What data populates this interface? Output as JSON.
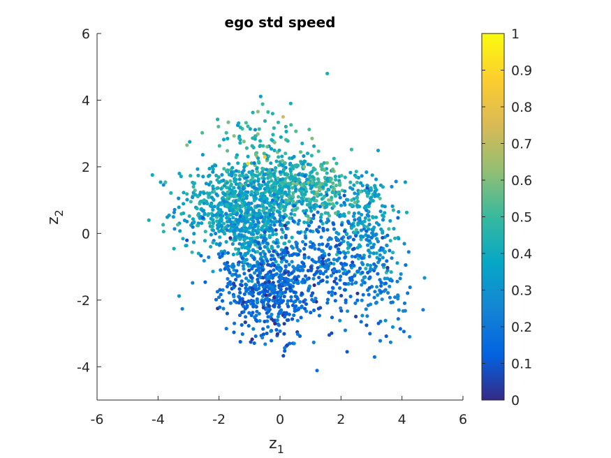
{
  "chart_data": {
    "type": "scatter",
    "title": "ego std speed",
    "xlabel": {
      "base": "z",
      "sub": "1"
    },
    "ylabel": {
      "base": "z",
      "sub": "2"
    },
    "xlim": [
      -6,
      6
    ],
    "ylim": [
      -5,
      6
    ],
    "xticks": [
      -6,
      -4,
      -2,
      0,
      2,
      4,
      6
    ],
    "yticks": [
      -4,
      -2,
      0,
      2,
      4,
      6
    ],
    "xtick_labels": [
      "-6",
      "-4",
      "-2",
      "0",
      "2",
      "4",
      "6"
    ],
    "ytick_labels": [
      "-4",
      "-2",
      "0",
      "2",
      "4",
      "6"
    ],
    "grid": false,
    "colorbar": {
      "colormap": "parula",
      "range": [
        0,
        1
      ],
      "ticks": [
        0,
        0.1,
        0.2,
        0.3,
        0.4,
        0.5,
        0.6,
        0.7,
        0.8,
        0.9,
        1
      ],
      "tick_labels": [
        "0",
        "0.1",
        "0.2",
        "0.3",
        "0.4",
        "0.5",
        "0.6",
        "0.7",
        "0.8",
        "0.9",
        "1"
      ],
      "stops": [
        "#352a87",
        "#0363e1",
        "#1485d4",
        "#06a7c6",
        "#38b99e",
        "#92bf73",
        "#d9ba56",
        "#fcce2e",
        "#f9fb0e"
      ]
    },
    "point_count_approx": 2500,
    "outliers": [
      {
        "x": 1.55,
        "y": 4.8,
        "value": 0.42
      },
      {
        "x": -4.3,
        "y": 0.4,
        "value": 0.42
      },
      {
        "x": 4.25,
        "y": -3.1,
        "value": 0.25
      },
      {
        "x": 2.2,
        "y": -3.55,
        "value": 0.1
      },
      {
        "x": 0.1,
        "y": 3.5,
        "value": 0.75
      },
      {
        "x": -3.05,
        "y": 2.65,
        "value": 0.6
      },
      {
        "x": -1.05,
        "y": 2.1,
        "value": 0.9
      },
      {
        "x": -0.5,
        "y": 2.3,
        "value": 0.85
      },
      {
        "x": 0.35,
        "y": 3.9,
        "value": 0.4
      },
      {
        "x": 1.05,
        "y": 2.85,
        "value": 0.6
      },
      {
        "x": -1.3,
        "y": -3.25,
        "value": 0.12
      },
      {
        "x": 3.9,
        "y": -2.3,
        "value": 0.25
      },
      {
        "x": -3.3,
        "y": 1.8,
        "value": 0.38
      }
    ],
    "clusters": [
      {
        "cx": -1.6,
        "cy": 0.8,
        "sx": 0.9,
        "sy": 0.65,
        "n": 520,
        "value_mean": 0.38,
        "value_sd": 0.07
      },
      {
        "cx": 0.2,
        "cy": 1.4,
        "sx": 0.8,
        "sy": 0.55,
        "n": 420,
        "value_mean": 0.42,
        "value_sd": 0.08
      },
      {
        "cx": -0.9,
        "cy": 0.1,
        "sx": 0.6,
        "sy": 0.7,
        "n": 300,
        "value_mean": 0.32,
        "value_sd": 0.07
      },
      {
        "cx": 2.8,
        "cy": 0.4,
        "sx": 0.55,
        "sy": 0.8,
        "n": 230,
        "value_mean": 0.35,
        "value_sd": 0.07
      },
      {
        "cx": -0.1,
        "cy": -1.8,
        "sx": 0.55,
        "sy": 0.75,
        "n": 330,
        "value_mean": 0.15,
        "value_sd": 0.06
      },
      {
        "cx": 1.4,
        "cy": -0.9,
        "sx": 0.8,
        "sy": 0.8,
        "n": 300,
        "value_mean": 0.16,
        "value_sd": 0.06
      },
      {
        "cx": -1.2,
        "cy": -1.7,
        "sx": 0.6,
        "sy": 0.6,
        "n": 140,
        "value_mean": 0.14,
        "value_sd": 0.06
      },
      {
        "cx": 3.3,
        "cy": -1.5,
        "sx": 0.55,
        "sy": 0.7,
        "n": 110,
        "value_mean": 0.22,
        "value_sd": 0.06
      },
      {
        "cx": -0.6,
        "cy": 2.9,
        "sx": 0.8,
        "sy": 0.5,
        "n": 70,
        "value_mean": 0.45,
        "value_sd": 0.08
      },
      {
        "cx": 1.6,
        "cy": 1.3,
        "sx": 0.5,
        "sy": 0.4,
        "n": 120,
        "value_mean": 0.47,
        "value_sd": 0.07
      }
    ]
  }
}
